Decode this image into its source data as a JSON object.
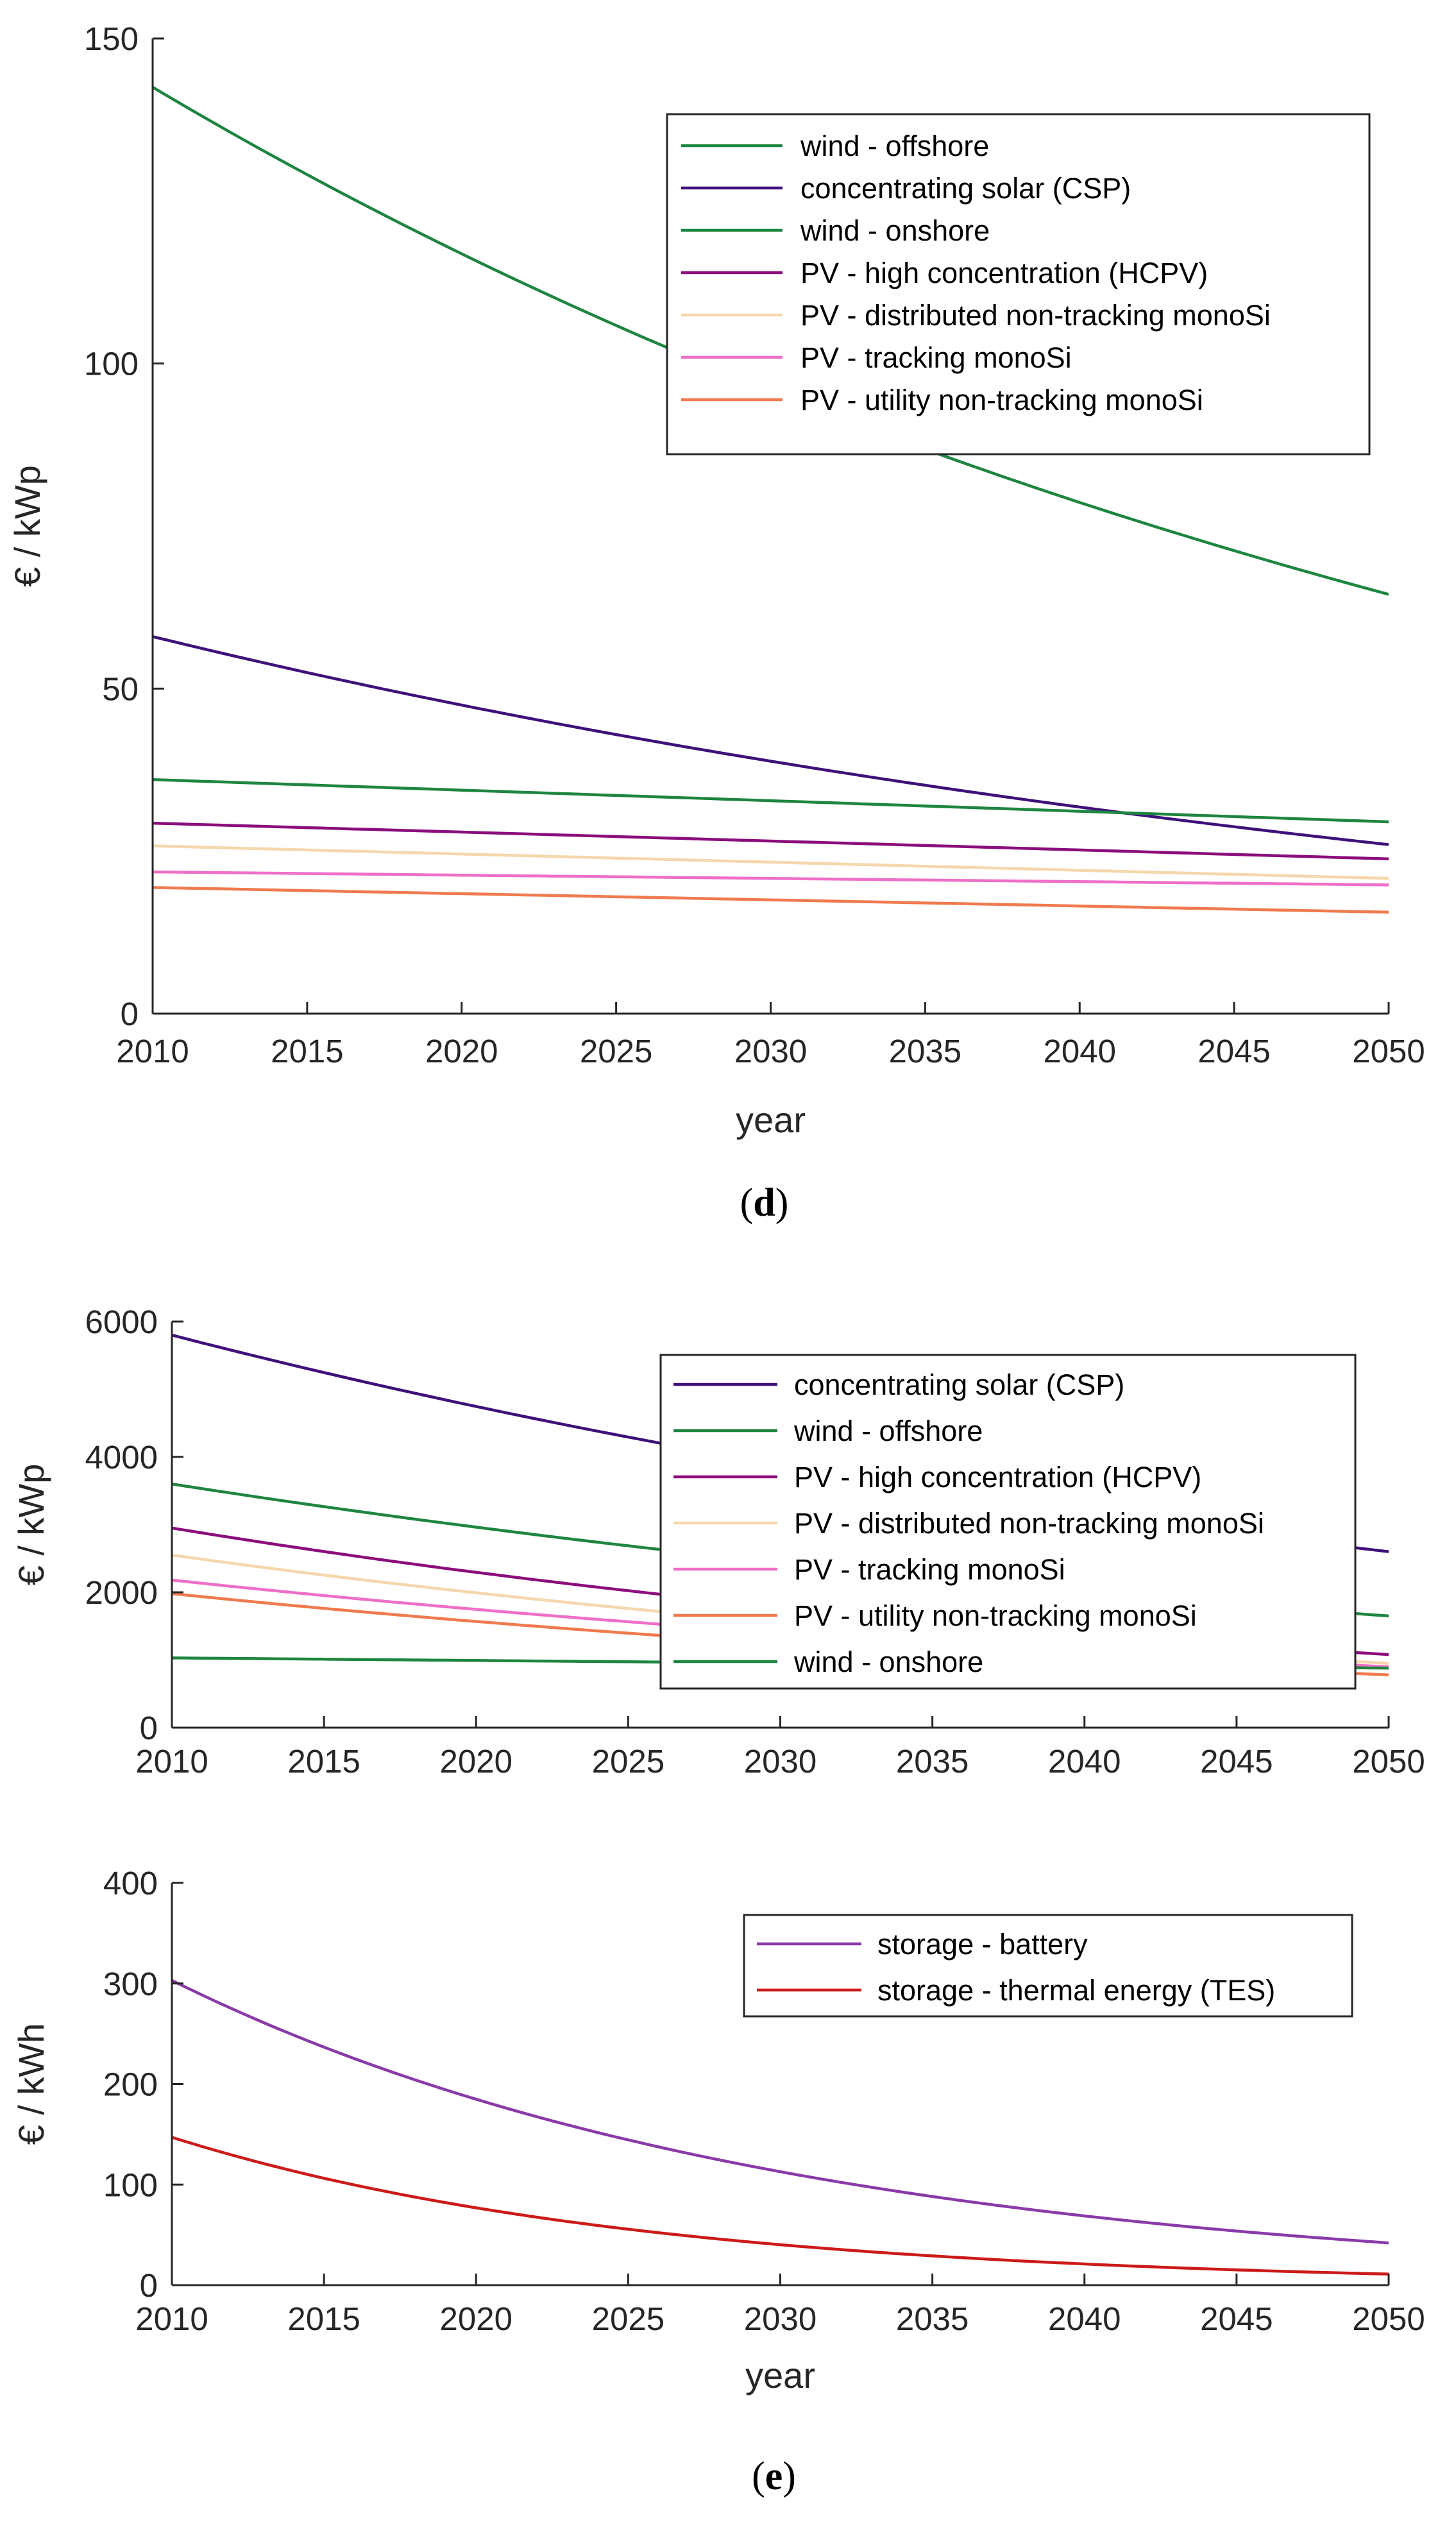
{
  "chart_data": [
    {
      "type": "line",
      "panel": "d",
      "caption": {
        "open": "(",
        "letter": "d",
        "close": ")"
      },
      "xlabel": "year",
      "ylabel": "€ / kWp",
      "xlim": [
        2010,
        2050
      ],
      "ylim": [
        0,
        150
      ],
      "xticks": [
        2010,
        2015,
        2020,
        2025,
        2030,
        2035,
        2040,
        2045,
        2050
      ],
      "yticks": [
        0,
        50,
        100,
        150
      ],
      "legend_position": "top-right",
      "x": [
        2010,
        2050
      ],
      "series": [
        {
          "name": "wind - offshore",
          "color": "#1e8540",
          "start": 142.5,
          "end": 64.5,
          "shape": "exp"
        },
        {
          "name": "concentrating solar (CSP)",
          "color": "#3f107a",
          "start": 58,
          "end": 26,
          "shape": "exp"
        },
        {
          "name": "wind - onshore",
          "color": "#1e8540",
          "start": 36,
          "end": 29.5,
          "shape": "linear"
        },
        {
          "name": "PV - high concentration (HCPV)",
          "color": "#8b0d7c",
          "start": 29.3,
          "end": 23.8,
          "shape": "linear"
        },
        {
          "name": "PV - distributed non-tracking monoSi",
          "color": "#f6d6ac",
          "start": 25.8,
          "end": 20.8,
          "shape": "linear"
        },
        {
          "name": "PV - tracking monoSi",
          "color": "#ee6fc7",
          "start": 21.8,
          "end": 19.8,
          "shape": "linear"
        },
        {
          "name": "PV - utility non-tracking monoSi",
          "color": "#f07a4f",
          "start": 19.4,
          "end": 15.6,
          "shape": "linear"
        }
      ]
    },
    {
      "type": "line",
      "panel": "e-top",
      "xlabel": "",
      "ylabel": "€ / kWp",
      "xlim": [
        2010,
        2050
      ],
      "ylim": [
        0,
        6000
      ],
      "xticks": [
        2010,
        2015,
        2020,
        2025,
        2030,
        2035,
        2040,
        2045,
        2050
      ],
      "yticks": [
        0,
        2000,
        4000,
        6000
      ],
      "legend_position": "top-right",
      "x": [
        2010,
        2050
      ],
      "series": [
        {
          "name": "concentrating solar (CSP)",
          "color": "#3f107a",
          "start": 5800,
          "end": 2600,
          "shape": "exp"
        },
        {
          "name": "wind - offshore",
          "color": "#1e8540",
          "start": 3600,
          "end": 1650,
          "shape": "exp"
        },
        {
          "name": "PV - high concentration (HCPV)",
          "color": "#8b0d7c",
          "start": 2950,
          "end": 1080,
          "shape": "exp"
        },
        {
          "name": "PV - distributed non-tracking monoSi",
          "color": "#f6d6ac",
          "start": 2550,
          "end": 950,
          "shape": "exp"
        },
        {
          "name": "PV - tracking monoSi",
          "color": "#ee6fc7",
          "start": 2180,
          "end": 900,
          "shape": "exp"
        },
        {
          "name": "PV - utility non-tracking monoSi",
          "color": "#f07a4f",
          "start": 1980,
          "end": 780,
          "shape": "exp"
        },
        {
          "name": "wind - onshore",
          "color": "#1e8540",
          "start": 1030,
          "end": 880,
          "shape": "linear"
        }
      ]
    },
    {
      "type": "line",
      "panel": "e-bottom",
      "caption": {
        "open": "(",
        "letter": "e",
        "close": ")"
      },
      "xlabel": "year",
      "ylabel": "€ / kWh",
      "xlim": [
        2010,
        2050
      ],
      "ylim": [
        0,
        400
      ],
      "xticks": [
        2010,
        2015,
        2020,
        2025,
        2030,
        2035,
        2040,
        2045,
        2050
      ],
      "yticks": [
        0,
        100,
        200,
        300,
        400
      ],
      "legend_position": "top-right",
      "x": [
        2010,
        2050
      ],
      "series": [
        {
          "name": "storage - battery",
          "color": "#8a3aa8",
          "start": 303,
          "end": 42,
          "shape": "exp"
        },
        {
          "name": "storage - thermal energy (TES)",
          "color": "#cc1a18",
          "start": 147,
          "end": 11,
          "shape": "exp"
        }
      ]
    }
  ]
}
